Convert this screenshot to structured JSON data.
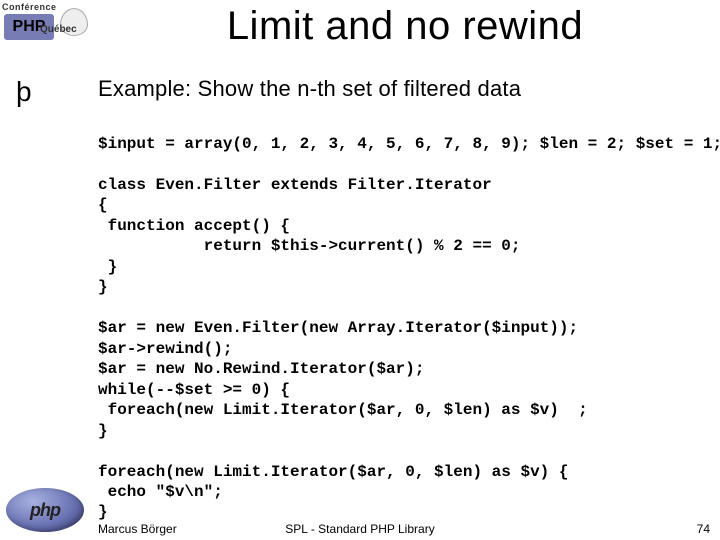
{
  "title": "Limit and no rewind",
  "bullet_mark": "þ",
  "subtitle": "Example: Show the n-th set of filtered data",
  "code": "$input = array(0, 1, 2, 3, 4, 5, 6, 7, 8, 9); $len = 2; $set = 1;\n\nclass Even.Filter extends Filter.Iterator\n{\n function accept() {\n           return $this->current() % 2 == 0;\n }\n}\n\n$ar = new Even.Filter(new Array.Iterator($input));\n$ar->rewind();\n$ar = new No.Rewind.Iterator($ar);\nwhile(--$set >= 0) {\n foreach(new Limit.Iterator($ar, 0, $len) as $v)  ;\n}\n\nforeach(new Limit.Iterator($ar, 0, $len) as $v) {\n echo \"$v\\n\";\n}",
  "footer": {
    "author": "Marcus Börger",
    "center": "SPL - Standard PHP Library",
    "page": "74"
  },
  "conf_logo": {
    "top": "Conférence",
    "php": "PHP",
    "qc": "Québec"
  },
  "php_logo_text": "php"
}
